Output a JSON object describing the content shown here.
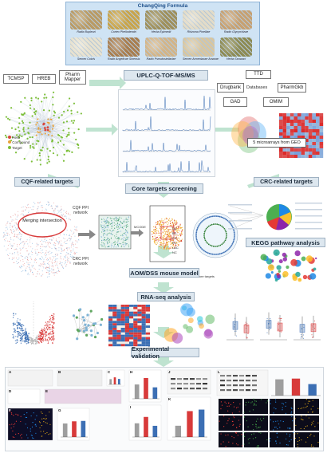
{
  "formula": {
    "title": "ChangQing Formula",
    "herbs": [
      {
        "name": "Radix Bupleuri",
        "color": "#b99a63"
      },
      {
        "name": "Cortex Phellodendri",
        "color": "#c9a44a"
      },
      {
        "name": "Herba Epimedii",
        "color": "#9e8f5a"
      },
      {
        "name": "Rhizoma Pinelliae",
        "color": "#e3dcc8"
      },
      {
        "name": "Radix Glycyrrhizae",
        "color": "#c7a070"
      },
      {
        "name": "Semen Coicis",
        "color": "#e8e2cf"
      },
      {
        "name": "Radix Angelicae Sinensis",
        "color": "#a87d4e"
      },
      {
        "name": "Radix Pseudostellariae",
        "color": "#d3b487"
      },
      {
        "name": "Semen Armeniacae Amarae",
        "color": "#d8c6a0"
      },
      {
        "name": "Herba Taraxaci",
        "color": "#8c8a52"
      }
    ]
  },
  "databases_left": [
    "TCMSP",
    "HREB",
    "Pharm Mapper"
  ],
  "uplc_label": "UPLC-Q-TOF-MS/MS",
  "databases_right": {
    "items": [
      "TTD",
      "Drugbank",
      "PharmGkb",
      "GAD",
      "OMIM"
    ],
    "center": "Databases"
  },
  "network_legend": [
    "Herb",
    "Compound",
    "Target"
  ],
  "geo_label": "5 microarrays from GEO",
  "cqf_targets": "CQF-related targets",
  "core_screening": "Core targets screening",
  "crc_targets": "CRC-related targets",
  "merging_label": "Merging intersection",
  "cqf_ppi": "CQF PPI network",
  "crc_ppi": "CRC PPI network",
  "cluster_labels": [
    "DC",
    "BC",
    "CC",
    "EC",
    "LAC",
    "NC"
  ],
  "core_targets_label": "466 core targets",
  "kegg_label": "KEGG pathway analysis",
  "mouse_model": "AOM/DSS mouse model",
  "rnaseq": "RNA-seq analysis",
  "exp_validation": "Experimental validation",
  "panel_letters": [
    "A",
    "B",
    "C",
    "D",
    "E",
    "F",
    "G",
    "H",
    "I",
    "J",
    "K",
    "L"
  ],
  "colors": {
    "stage_bg": "#dde7ef",
    "arrow": "#bfe3d0",
    "net_green": "#7dbf3a",
    "net_red": "#d9453a",
    "accent_blue": "#3c6fb4",
    "accent_red": "#d83a3a"
  }
}
